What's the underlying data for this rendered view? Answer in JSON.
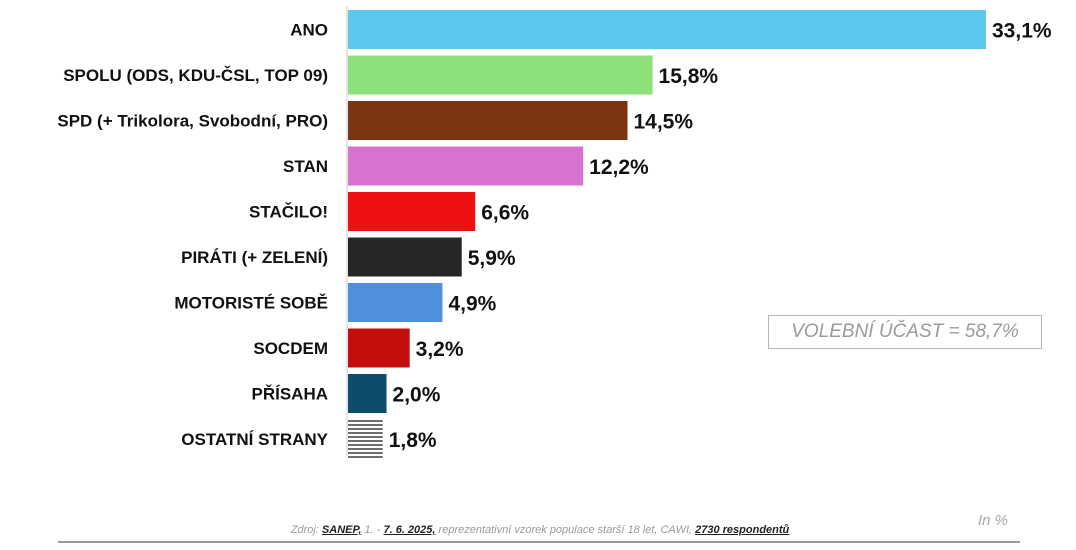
{
  "chart_data": {
    "type": "bar",
    "orientation": "horizontal",
    "categories": [
      "ANO",
      "SPOLU (ODS, KDU-ČSL, TOP 09)",
      "SPD (+ Trikolora, Svobodní, PRO)",
      "STAN",
      "STAČILO!",
      "PIRÁTI (+ ZELENÍ)",
      "MOTORISTÉ SOBĚ",
      "SOCDEM",
      "PŘÍSAHA",
      "OSTATNÍ STRANY"
    ],
    "values": [
      33.1,
      15.8,
      14.5,
      12.2,
      6.6,
      5.9,
      4.9,
      3.2,
      2.0,
      1.8
    ],
    "value_labels": [
      "33,1%",
      "15,8%",
      "14,5%",
      "12,2%",
      "6,6%",
      "5,9%",
      "4,9%",
      "3,2%",
      "2,0%",
      "1,8%"
    ],
    "colors": [
      "#5bc8f0",
      "#8ee07a",
      "#7b3512",
      "#d673cf",
      "#ee1111",
      "#262626",
      "#4f90dc",
      "#c40d0d",
      "#0e4d6a",
      "striped-gray"
    ],
    "xlim": [
      0,
      33.1
    ],
    "grid": false,
    "legend": "none"
  },
  "annotations": {
    "turnout": "VOLEBNÍ ÚČAST = 58,7%",
    "unit": "In %"
  },
  "footer": {
    "prefix": "Zdroj: ",
    "source": "SANEP,",
    "date_start": " 1. - ",
    "date_end": "7. 6. 2025,",
    "description": " reprezentativní vzorek populace starší 18 let, CAWI, ",
    "respondents": "2730 respondentů"
  }
}
